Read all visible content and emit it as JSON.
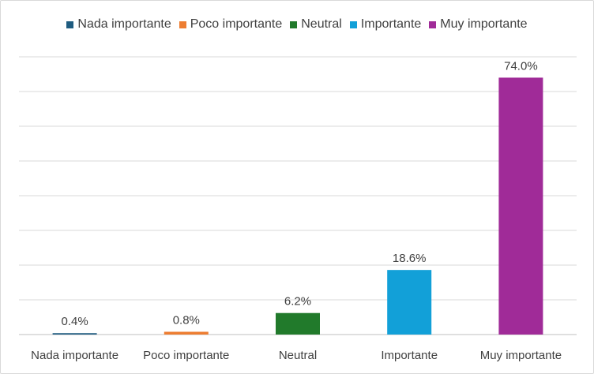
{
  "chart_data": {
    "type": "bar",
    "categories": [
      "Nada importante",
      "Poco importante",
      "Neutral",
      "Importante",
      "Muy importante"
    ],
    "values": [
      0.4,
      0.8,
      6.2,
      18.6,
      74.0
    ],
    "data_labels": [
      "0.4%",
      "0.8%",
      "6.2%",
      "18.6%",
      "74.0%"
    ],
    "colors": [
      "#1f5c80",
      "#ed7d31",
      "#217a2b",
      "#12a0d8",
      "#a02b98"
    ],
    "legend": [
      "Nada importante",
      "Poco importante",
      "Neutral",
      "Importante",
      "Muy importante"
    ],
    "legend_position": "top",
    "title": "",
    "xlabel": "",
    "ylabel": "",
    "ylim": [
      0,
      80
    ],
    "grid": true,
    "gridline_count": 8
  }
}
